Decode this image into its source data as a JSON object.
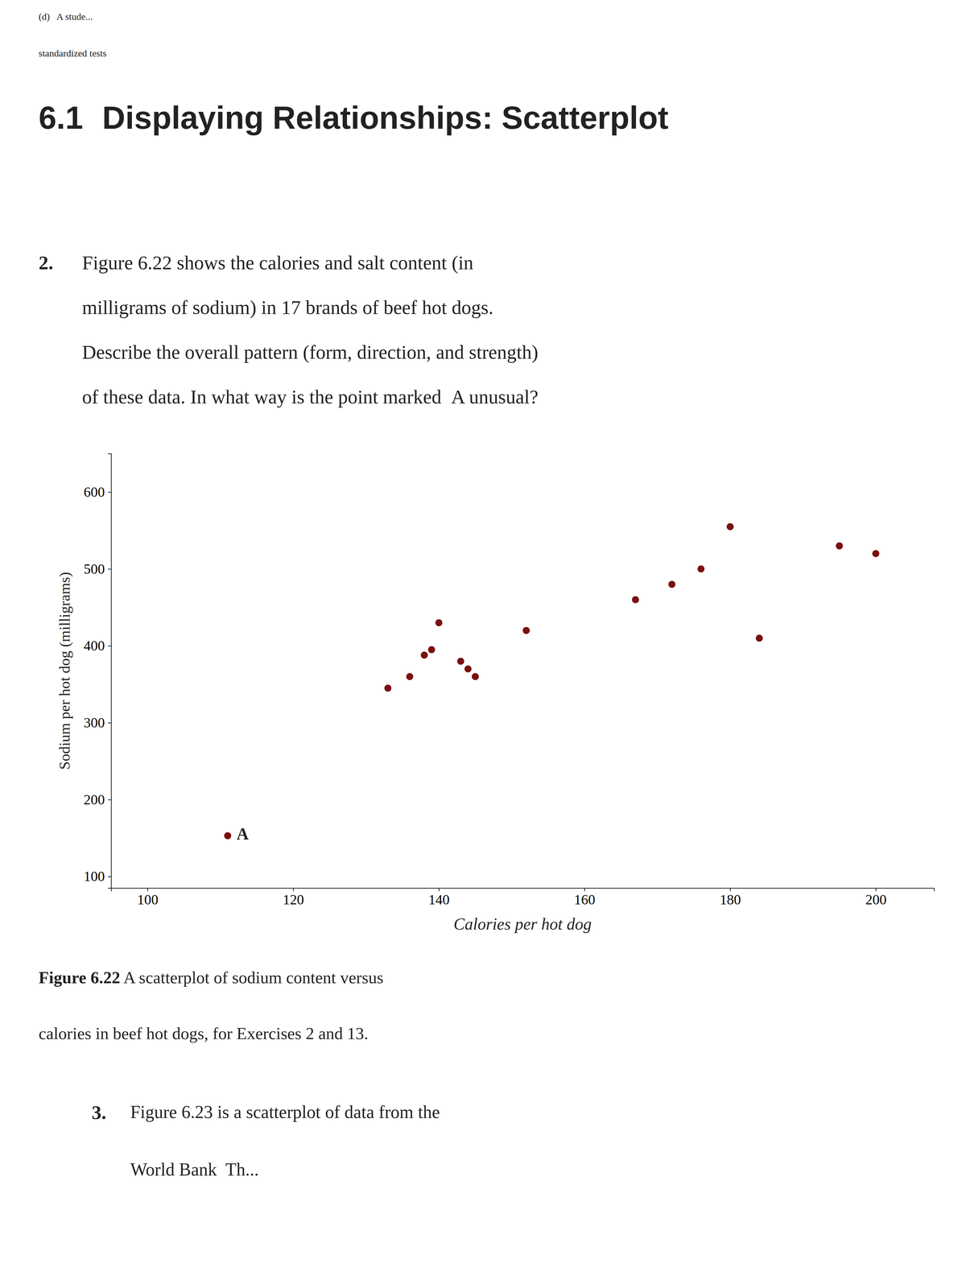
{
  "chart_data": {
    "type": "scatter",
    "x_label": "Calories per hot dog",
    "y_label": "Sodium per hot dog (milligrams)",
    "x": [
      111,
      133,
      136,
      138,
      139,
      140,
      143,
      144,
      145,
      152,
      167,
      172,
      176,
      180,
      184,
      195,
      200
    ],
    "values": [
      153,
      345,
      360,
      388,
      395,
      430,
      380,
      370,
      360,
      420,
      460,
      480,
      500,
      555,
      410,
      530,
      520
    ],
    "color": "#7a1010",
    "xlim": [
      95,
      208
    ],
    "ylim": [
      85,
      650
    ],
    "xticks": [
      100,
      120,
      140,
      160,
      180,
      200
    ],
    "yticks": [
      100,
      200,
      300,
      400,
      500,
      600
    ],
    "grid": false,
    "annotations": [
      {
        "text": "A",
        "x": 111,
        "y": 153
      }
    ]
  },
  "page_texts": {
    "top_line1": "(d)   A stude...",
    "top_line2": "standardized tests",
    "header_num": "6.1",
    "header_title": "Displaying Relationships: Scatterplot",
    "problem_num": "2.",
    "problem_line1": "Figure 6.22 shows the calories and salt content (in",
    "problem_line2": "milligrams of sodium) in 17 brands of beef hot dogs.",
    "problem_line3": "Describe the overall pattern (form, direction, and strength)",
    "problem_line4": "of these data. In what way is the point marked  A unusual?",
    "fig_label": "Figure 6.22",
    "fig_caption_1": " A scatterplot of sodium content versus",
    "fig_caption_2": "calories in beef hot dogs, for Exercises 2 and 13.",
    "next_label": "3.",
    "next_body_1": "Figure 6.23 is a scatterplot of data from the",
    "next_body_2": "World Bank  Th..."
  }
}
